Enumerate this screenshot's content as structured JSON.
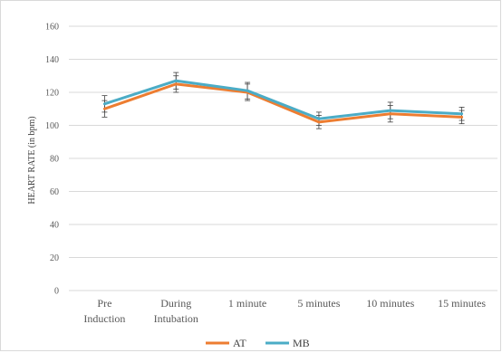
{
  "chart_data": {
    "type": "line",
    "categories": [
      [
        "Pre",
        "Induction"
      ],
      [
        "During",
        "Intubation"
      ],
      [
        "1 minute"
      ],
      [
        "5 minutes"
      ],
      [
        "10 minutes"
      ],
      [
        "15 minutes"
      ]
    ],
    "series": [
      {
        "name": "AT",
        "color": "#ed7d31",
        "values": [
          110,
          125,
          120,
          102,
          107,
          105
        ],
        "error": [
          5,
          5,
          5,
          4,
          5,
          4
        ]
      },
      {
        "name": "MB",
        "color": "#4bacc6",
        "values": [
          113,
          127,
          121,
          104,
          109,
          107
        ],
        "error": [
          5,
          5,
          5,
          4,
          5,
          4
        ]
      }
    ],
    "title": "",
    "xlabel": "",
    "ylabel": "HEART RATE (in bpm)",
    "ylim": [
      0,
      160
    ],
    "yticks": [
      0,
      20,
      40,
      60,
      80,
      100,
      120,
      140,
      160
    ],
    "grid": true,
    "legend": "bottom",
    "error_bar_color": "#404040",
    "grid_color": "#d9d9d9"
  }
}
